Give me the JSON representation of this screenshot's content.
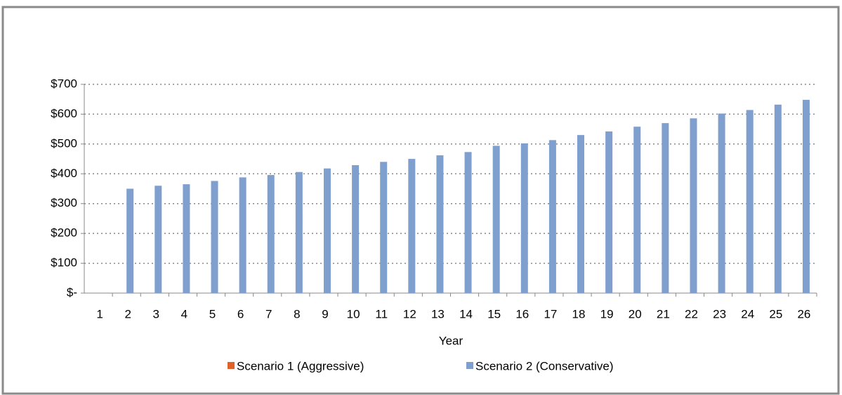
{
  "chart_data": {
    "type": "bar",
    "x_label": "Year",
    "categories": [
      "1",
      "2",
      "3",
      "4",
      "5",
      "6",
      "7",
      "8",
      "9",
      "10",
      "11",
      "12",
      "13",
      "14",
      "15",
      "16",
      "17",
      "18",
      "19",
      "20",
      "21",
      "22",
      "23",
      "24",
      "25",
      "26"
    ],
    "series": [
      {
        "name": "Scenario 1 (Aggressive)",
        "color": "#e0622a",
        "values": [
          null,
          null,
          null,
          null,
          null,
          null,
          null,
          null,
          null,
          null,
          null,
          null,
          null,
          null,
          null,
          null,
          null,
          null,
          null,
          null,
          null,
          null,
          null,
          null,
          null,
          null
        ]
      },
      {
        "name": "Scenario 2 (Conservative)",
        "color": "#7f9fcf",
        "values": [
          null,
          350,
          360,
          365,
          376,
          388,
          396,
          406,
          418,
          429,
          440,
          450,
          462,
          473,
          494,
          502,
          513,
          530,
          542,
          558,
          570,
          586,
          602,
          614,
          632,
          648
        ]
      }
    ],
    "ylim": [
      0,
      700
    ],
    "yticks": [
      {
        "value": 0,
        "label": "$-"
      },
      {
        "value": 100,
        "label": "$100"
      },
      {
        "value": 200,
        "label": "$200"
      },
      {
        "value": 300,
        "label": "$300"
      },
      {
        "value": 400,
        "label": "$400"
      },
      {
        "value": 500,
        "label": "$500"
      },
      {
        "value": 600,
        "label": "$600"
      },
      {
        "value": 700,
        "label": "$700"
      }
    ],
    "grid": true
  }
}
